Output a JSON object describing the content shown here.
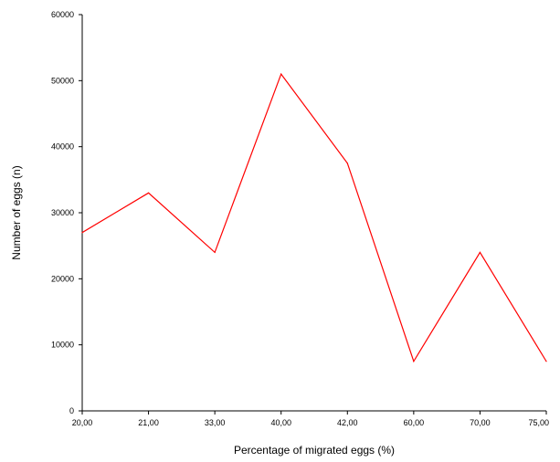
{
  "chart_data": {
    "type": "line",
    "title": "",
    "xlabel": "Percentage of migrated eggs (%)",
    "ylabel": "Number of eggs (n)",
    "categories": [
      "20,00",
      "21,00",
      "33,00",
      "40,00",
      "42,00",
      "60,00",
      "70,00",
      "75,00"
    ],
    "series": [
      {
        "values": [
          27000,
          33000,
          24000,
          51000,
          37500,
          7500,
          24000,
          7500
        ],
        "color": "#ff0000"
      }
    ],
    "yticks": [
      {
        "value": 0,
        "label": "0"
      },
      {
        "value": 10000,
        "label": "10000"
      },
      {
        "value": 20000,
        "label": "20000"
      },
      {
        "value": 30000,
        "label": "30000"
      },
      {
        "value": 40000,
        "label": "40000"
      },
      {
        "value": 50000,
        "label": "50000"
      },
      {
        "value": 60000,
        "label": "60000"
      }
    ],
    "ylim": [
      0,
      60000
    ],
    "grid": false,
    "legend": "none"
  }
}
